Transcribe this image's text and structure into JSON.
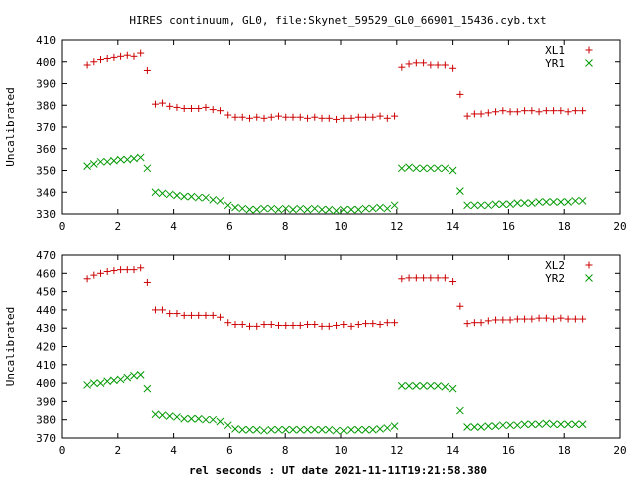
{
  "title": "HIRES continuum, GL0, file:Skynet_59529_GL0_66901_15436.cyb.txt",
  "xlabel": "rel seconds : UT date 2021-11-11T19:21:58.380",
  "colors": {
    "series_a": "#cc0000",
    "series_b": "#009900"
  },
  "chart_data": [
    {
      "type": "scatter",
      "ylabel": "Uncalibrated",
      "xlim": [
        0,
        20
      ],
      "ylim": [
        330,
        410
      ],
      "xticks": [
        0,
        2,
        4,
        6,
        8,
        10,
        12,
        14,
        16,
        18,
        20
      ],
      "yticks": [
        330,
        340,
        350,
        360,
        370,
        380,
        390,
        400,
        410
      ],
      "grid": false,
      "legend_position": "top-right",
      "x": [
        0.9,
        1.14,
        1.38,
        1.62,
        1.86,
        2.1,
        2.34,
        2.58,
        2.82,
        3.06,
        3.35,
        3.6,
        3.86,
        4.12,
        4.38,
        4.64,
        4.9,
        5.16,
        5.42,
        5.68,
        5.94,
        6.2,
        6.46,
        6.72,
        6.98,
        7.24,
        7.5,
        7.76,
        8.02,
        8.28,
        8.54,
        8.8,
        9.06,
        9.32,
        9.58,
        9.84,
        10.1,
        10.36,
        10.62,
        10.88,
        11.14,
        11.4,
        11.66,
        11.92,
        12.18,
        12.44,
        12.7,
        12.96,
        13.22,
        13.48,
        13.74,
        14.0,
        14.26,
        14.52,
        14.78,
        15.02,
        15.28,
        15.54,
        15.8,
        16.06,
        16.32,
        16.58,
        16.84,
        17.1,
        17.36,
        17.62,
        17.88,
        18.14,
        18.4,
        18.66
      ],
      "series": [
        {
          "name": "XL1",
          "marker": "plus",
          "values": [
            398.5,
            400,
            401,
            401.5,
            402,
            402.5,
            403,
            402.5,
            404,
            396,
            380.5,
            381,
            379.5,
            379,
            378.5,
            378.5,
            378.5,
            379,
            378,
            377.5,
            375.5,
            374.5,
            374.5,
            374,
            374.5,
            374,
            374.5,
            375,
            374.5,
            374.5,
            374.5,
            374,
            374.5,
            374,
            374,
            373.5,
            374,
            374,
            374.5,
            374.5,
            374.5,
            375,
            374,
            375,
            397.5,
            399,
            399.5,
            399.5,
            398.5,
            398.5,
            398.5,
            397,
            385,
            375,
            376,
            376,
            376.5,
            377,
            377.5,
            377,
            377,
            377.5,
            377.5,
            377,
            377.5,
            377.5,
            377.5,
            377,
            377.5,
            377.5
          ]
        },
        {
          "name": "YR1",
          "marker": "cross",
          "values": [
            352,
            353,
            354,
            354,
            354.5,
            355,
            355,
            355.5,
            356,
            351,
            340,
            339.5,
            339,
            338.5,
            338,
            338,
            337.5,
            337.5,
            336.5,
            336,
            334,
            333,
            332.5,
            332,
            332,
            332.5,
            332.5,
            332,
            332.5,
            332,
            332.5,
            332,
            332.5,
            332,
            332,
            331.5,
            332,
            332,
            332,
            332.5,
            332.5,
            333,
            332.5,
            334,
            351,
            351.5,
            351,
            351,
            351,
            351,
            351,
            350,
            340.5,
            334,
            334,
            334,
            334,
            334.5,
            334.5,
            334.5,
            335,
            335,
            335,
            335.5,
            335.5,
            335.5,
            335.5,
            335.5,
            336,
            336
          ]
        }
      ]
    },
    {
      "type": "scatter",
      "ylabel": "Uncalibrated",
      "xlim": [
        0,
        20
      ],
      "ylim": [
        370,
        470
      ],
      "xticks": [
        0,
        2,
        4,
        6,
        8,
        10,
        12,
        14,
        16,
        18,
        20
      ],
      "yticks": [
        370,
        380,
        390,
        400,
        410,
        420,
        430,
        440,
        450,
        460,
        470
      ],
      "grid": false,
      "legend_position": "top-right",
      "x": [
        0.9,
        1.14,
        1.38,
        1.62,
        1.86,
        2.1,
        2.34,
        2.58,
        2.82,
        3.06,
        3.35,
        3.6,
        3.86,
        4.12,
        4.38,
        4.64,
        4.9,
        5.16,
        5.42,
        5.68,
        5.94,
        6.2,
        6.46,
        6.72,
        6.98,
        7.24,
        7.5,
        7.76,
        8.02,
        8.28,
        8.54,
        8.8,
        9.06,
        9.32,
        9.58,
        9.84,
        10.1,
        10.36,
        10.62,
        10.88,
        11.14,
        11.4,
        11.66,
        11.92,
        12.18,
        12.44,
        12.7,
        12.96,
        13.22,
        13.48,
        13.74,
        14.0,
        14.26,
        14.52,
        14.78,
        15.02,
        15.28,
        15.54,
        15.8,
        16.06,
        16.32,
        16.58,
        16.84,
        17.1,
        17.36,
        17.62,
        17.88,
        18.14,
        18.4,
        18.66
      ],
      "series": [
        {
          "name": "XL2",
          "marker": "plus",
          "values": [
            457,
            459,
            460,
            461,
            461.5,
            462,
            462,
            462,
            463,
            455,
            440,
            440,
            438,
            438,
            437,
            437,
            437,
            437,
            437,
            436,
            433,
            432,
            432,
            431,
            431,
            432,
            432,
            431.5,
            431.5,
            431.5,
            431.5,
            432,
            432,
            431,
            431,
            431.5,
            432,
            431,
            432,
            432.5,
            432.5,
            432,
            433,
            433,
            457,
            457.5,
            457.5,
            457.5,
            457.5,
            457.5,
            457.5,
            455.5,
            442,
            432.5,
            433,
            433,
            434,
            434.5,
            434.5,
            434.5,
            435,
            435,
            435,
            435.5,
            435.5,
            435,
            435.5,
            435,
            435,
            435
          ]
        },
        {
          "name": "YR2",
          "marker": "cross",
          "values": [
            399,
            400,
            400,
            401,
            401.5,
            402,
            403,
            404,
            404.5,
            397,
            383,
            382.5,
            382,
            381.5,
            380.5,
            380.5,
            380.5,
            380,
            380,
            379,
            377,
            375,
            374.5,
            374.5,
            374.5,
            374,
            374.5,
            374.5,
            374.5,
            374.5,
            374.5,
            374.5,
            374.5,
            374.5,
            374.5,
            374,
            374,
            374.5,
            374.5,
            374.5,
            374.5,
            375,
            375.5,
            376.5,
            398.5,
            398.5,
            398.5,
            398.5,
            398.5,
            398.5,
            398,
            397,
            385,
            376,
            376,
            376,
            376.5,
            376.5,
            377,
            377,
            377,
            377.5,
            377.5,
            377.5,
            378,
            377.5,
            377.5,
            377.5,
            377.5,
            377.5
          ]
        }
      ]
    }
  ]
}
